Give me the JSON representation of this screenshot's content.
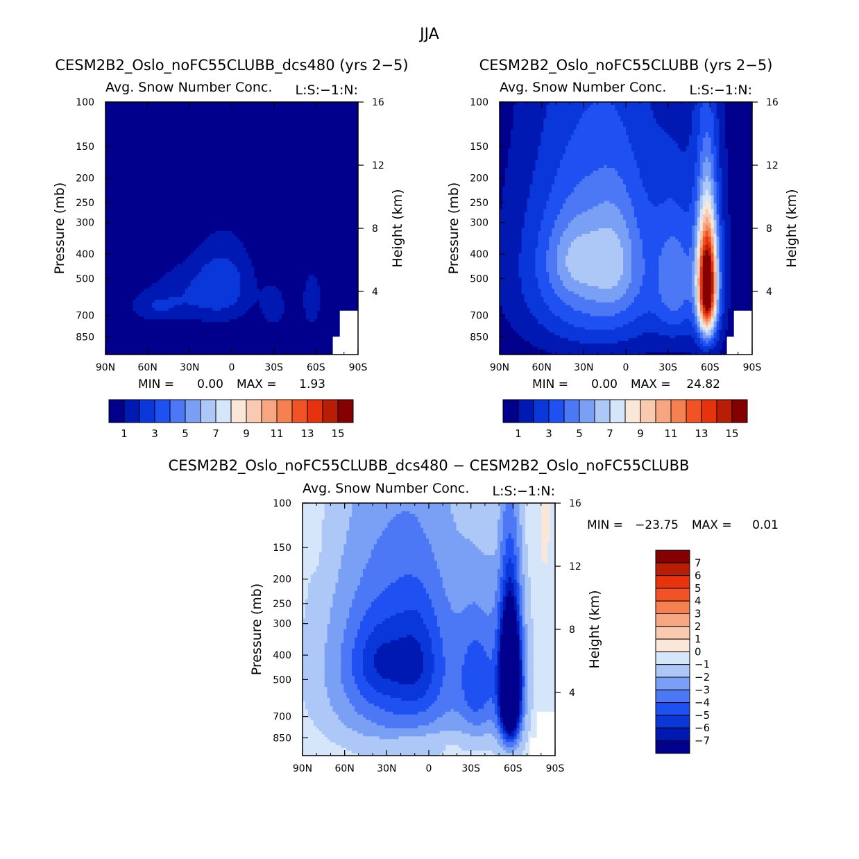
{
  "figure": {
    "title": "JJA"
  },
  "chart_data": [
    {
      "type": "heatmap",
      "name": "panel-dcs480",
      "title": "CESM2B2_Oslo_noFC55CLUBB_dcs480 (yrs 2−5)",
      "left_subtitle": "Avg. Snow Number Conc.",
      "right_subtitle": "L:S:−1:N:",
      "ylabel": "Pressure (mb)",
      "y2label": "Height (km)",
      "x_ticks": [
        "90N",
        "60N",
        "30N",
        "0",
        "30S",
        "60S",
        "90S"
      ],
      "y_ticks": [
        "100",
        "150",
        "200",
        "250",
        "300",
        "400",
        "500",
        "700",
        "850"
      ],
      "y2_ticks": [
        "16",
        "12",
        "8",
        "4"
      ],
      "xlim": [
        90,
        -90
      ],
      "ylim": [
        1000,
        100
      ],
      "min_label": "MIN =",
      "min_value": "0.00",
      "max_label": "MAX =",
      "max_value": "1.93",
      "features": [
        {
          "lat": 5,
          "p": 510,
          "amp": 1.9,
          "sl": 15,
          "sp": 150
        },
        {
          "lat": 28,
          "p": 570,
          "amp": 1.6,
          "sl": 26,
          "sp": 120
        },
        {
          "lat": 55,
          "p": 650,
          "amp": 1.3,
          "sl": 14,
          "sp": 60
        },
        {
          "lat": -30,
          "p": 650,
          "amp": 1.7,
          "sl": 6,
          "sp": 90
        },
        {
          "lat": -57,
          "p": 610,
          "amp": 1.8,
          "sl": 5,
          "sp": 120
        }
      ]
    },
    {
      "type": "heatmap",
      "name": "panel-ctrl",
      "title": "CESM2B2_Oslo_noFC55CLUBB (yrs 2−5)",
      "left_subtitle": "Avg. Snow Number Conc.",
      "right_subtitle": "L:S:−1:N:",
      "ylabel": "Pressure (mb)",
      "y2label": "Height (km)",
      "x_ticks": [
        "90N",
        "60N",
        "30N",
        "0",
        "30S",
        "60S",
        "90S"
      ],
      "y_ticks": [
        "100",
        "150",
        "200",
        "250",
        "300",
        "400",
        "500",
        "700",
        "850"
      ],
      "y2_ticks": [
        "16",
        "12",
        "8",
        "4"
      ],
      "xlim": [
        90,
        -90
      ],
      "ylim": [
        1000,
        100
      ],
      "min_label": "MIN =",
      "min_value": "0.00",
      "max_label": "MAX =",
      "max_value": "24.82",
      "features": [
        {
          "lat": 20,
          "p": 450,
          "amp": 5.2,
          "sl": 40,
          "sp": 330
        },
        {
          "lat": 35,
          "p": 420,
          "amp": 1.8,
          "sl": 14,
          "sp": 100
        },
        {
          "lat": 8,
          "p": 420,
          "amp": 1.5,
          "sl": 10,
          "sp": 140
        },
        {
          "lat": -35,
          "p": 530,
          "amp": 2.8,
          "sl": 9,
          "sp": 220
        },
        {
          "lat": -58,
          "p": 530,
          "amp": 14.8,
          "sl": 4.5,
          "sp": 185
        },
        {
          "lat": -58,
          "p": 470,
          "amp": 3.5,
          "sl": 9,
          "sp": 330
        }
      ]
    },
    {
      "type": "heatmap",
      "name": "panel-diff",
      "title": "CESM2B2_Oslo_noFC55CLUBB_dcs480 − CESM2B2_Oslo_noFC55CLUBB",
      "left_subtitle": "Avg. Snow Number Conc.",
      "right_subtitle": "L:S:−1:N:",
      "ylabel": "Pressure (mb)",
      "y2label": "Height (km)",
      "x_ticks": [
        "90N",
        "60N",
        "30N",
        "0",
        "30S",
        "60S",
        "90S"
      ],
      "y_ticks": [
        "100",
        "150",
        "200",
        "250",
        "300",
        "400",
        "500",
        "700",
        "850"
      ],
      "y2_ticks": [
        "16",
        "12",
        "8",
        "4"
      ],
      "xlim": [
        90,
        -90
      ],
      "ylim": [
        1000,
        100
      ],
      "min_label": "MIN =",
      "min_value": "−23.75",
      "max_label": "MAX =",
      "max_value": "0.01",
      "features": [
        {
          "lat": 20,
          "p": 450,
          "amp": -5.0,
          "sl": 40,
          "sp": 330
        },
        {
          "lat": 35,
          "p": 420,
          "amp": -1.6,
          "sl": 14,
          "sp": 100
        },
        {
          "lat": 8,
          "p": 420,
          "amp": -1.4,
          "sl": 10,
          "sp": 140
        },
        {
          "lat": -35,
          "p": 530,
          "amp": -2.8,
          "sl": 9,
          "sp": 220
        },
        {
          "lat": -58,
          "p": 530,
          "amp": -14.8,
          "sl": 4.5,
          "sp": 185
        },
        {
          "lat": -58,
          "p": 470,
          "amp": -3.5,
          "sl": 9,
          "sp": 330
        },
        {
          "lat": 5,
          "p": 880,
          "amp": 0.6,
          "sl": 25,
          "sp": 50
        },
        {
          "lat": 80,
          "p": 120,
          "amp": 0.5,
          "sl": 3,
          "sp": 40
        },
        {
          "lat": -48,
          "p": 120,
          "amp": 0.5,
          "sl": 2,
          "sp": 40
        },
        {
          "lat": -72,
          "p": 120,
          "amp": 0.5,
          "sl": 3,
          "sp": 45
        },
        {
          "lat": -82,
          "p": 120,
          "amp": 0.5,
          "sl": 2,
          "sp": 40
        }
      ]
    }
  ],
  "colorbar_main": {
    "labels": [
      "1",
      "3",
      "5",
      "7",
      "9",
      "11",
      "13",
      "15"
    ],
    "colors": [
      "#00008c",
      "#0019b3",
      "#0a37d9",
      "#1f50f2",
      "#4c78f5",
      "#7aa0f5",
      "#adc8f7",
      "#d6e6fa",
      "#fbe7d8",
      "#facab0",
      "#f7a681",
      "#f58050",
      "#f25326",
      "#e6330d",
      "#b81e05",
      "#850000"
    ]
  },
  "colorbar_diff": {
    "labels": [
      "7",
      "6",
      "5",
      "4",
      "3",
      "2",
      "1",
      "0",
      "−1",
      "−2",
      "−3",
      "−4",
      "−5",
      "−6",
      "−7"
    ],
    "colors": [
      "#850000",
      "#b81e05",
      "#e6330d",
      "#f25326",
      "#f58050",
      "#f7a681",
      "#facab0",
      "#fbe7d8",
      "#d6e6fa",
      "#adc8f7",
      "#7aa0f5",
      "#4c78f5",
      "#1f50f2",
      "#0a37d9",
      "#0019b3",
      "#00008c"
    ]
  }
}
